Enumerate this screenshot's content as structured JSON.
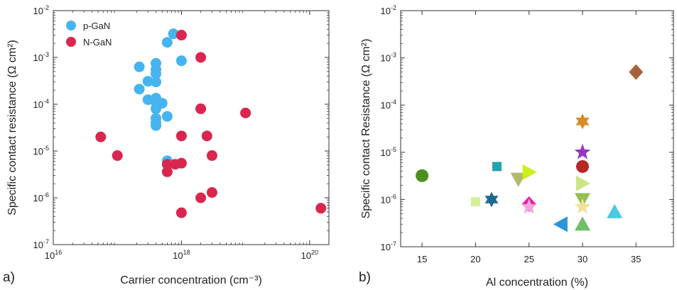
{
  "chart_data": [
    {
      "type": "scatter",
      "panel_label": "a)",
      "xlabel": "Carrier concentration (cm⁻³)",
      "ylabel": "Specific contact resistance (Ω cm²)",
      "xscale": "log",
      "yscale": "log",
      "xlim": [
        1e+16,
        2e+20
      ],
      "ylim": [
        1e-07,
        0.01
      ],
      "grid": false,
      "legend_position": "top-left",
      "xticks": [
        {
          "value": 1e+16,
          "base": "10",
          "exp": "16"
        },
        {
          "value": 1e+18,
          "base": "10",
          "exp": "18"
        },
        {
          "value": 1e+20,
          "base": "10",
          "exp": "20"
        }
      ],
      "yticks": [
        {
          "value": 1e-07,
          "base": "10",
          "exp": "-7"
        },
        {
          "value": 1e-06,
          "base": "10",
          "exp": "-6"
        },
        {
          "value": 1e-05,
          "base": "10",
          "exp": "-5"
        },
        {
          "value": 0.0001,
          "base": "10",
          "exp": "-4"
        },
        {
          "value": 0.001,
          "base": "10",
          "exp": "-3"
        },
        {
          "value": 0.01,
          "base": "10",
          "exp": "-2"
        }
      ],
      "series": [
        {
          "name": "p-GaN",
          "color": "#46b4ef",
          "points": [
            [
              2.2e+17,
              0.00063
            ],
            [
              2.2e+17,
              0.00021
            ],
            [
              3e+17,
              0.00031
            ],
            [
              3e+17,
              0.000125
            ],
            [
              4e+17,
              0.00075
            ],
            [
              4e+17,
              0.00055
            ],
            [
              4e+17,
              0.00045
            ],
            [
              4e+17,
              0.0003
            ],
            [
              4e+17,
              0.000135
            ],
            [
              4e+17,
              0.00011
            ],
            [
              4e+17,
              8e-05
            ],
            [
              4e+17,
              5e-05
            ],
            [
              4e+17,
              4e-05
            ],
            [
              4e+17,
              3.5e-05
            ],
            [
              5e+17,
              0.000105
            ],
            [
              6e+17,
              5.5e-05
            ],
            [
              6e+17,
              0.0021
            ],
            [
              6e+17,
              6.2e-06
            ],
            [
              7.5e+17,
              0.0032
            ],
            [
              1e+18,
              0.00085
            ]
          ]
        },
        {
          "name": "N-GaN",
          "color": "#d9264f",
          "points": [
            [
              1e+18,
              0.003
            ],
            [
              2e+18,
              0.001
            ],
            [
              2e+18,
              8e-05
            ],
            [
              1e+19,
              6.5e-05
            ],
            [
              5.5e+16,
              2e-05
            ],
            [
              1e+17,
              8e-06
            ],
            [
              1e+18,
              2.1e-05
            ],
            [
              2.5e+18,
              2.1e-05
            ],
            [
              3e+18,
              8e-06
            ],
            [
              6e+17,
              5.2e-06
            ],
            [
              6e+17,
              3.6e-06
            ],
            [
              8e+17,
              5.2e-06
            ],
            [
              1e+18,
              5.5e-06
            ],
            [
              2e+18,
              1e-06
            ],
            [
              3e+18,
              1.3e-06
            ],
            [
              1e+18,
              4.8e-07
            ],
            [
              1.5e+20,
              6e-07
            ]
          ]
        }
      ]
    },
    {
      "type": "scatter",
      "panel_label": "b)",
      "xlabel": "Al concentration (%)",
      "ylabel": "Specific contact Resistance (Ω cm²)",
      "xscale": "linear",
      "yscale": "log",
      "xlim": [
        13,
        38.5
      ],
      "ylim": [
        1e-07,
        0.01
      ],
      "grid": false,
      "xticks": [
        {
          "value": 15,
          "label": "15"
        },
        {
          "value": 20,
          "label": "20"
        },
        {
          "value": 25,
          "label": "25"
        },
        {
          "value": 30,
          "label": "30"
        },
        {
          "value": 35,
          "label": "35"
        }
      ],
      "yticks": [
        {
          "value": 1e-07,
          "base": "10",
          "exp": "-7"
        },
        {
          "value": 1e-06,
          "base": "10",
          "exp": "-6"
        },
        {
          "value": 1e-05,
          "base": "10",
          "exp": "-5"
        },
        {
          "value": 0.0001,
          "base": "10",
          "exp": "-4"
        },
        {
          "value": 0.001,
          "base": "10",
          "exp": "-3"
        },
        {
          "value": 0.01,
          "base": "10",
          "exp": "-2"
        }
      ],
      "points": [
        {
          "x": 15,
          "y": 3.2e-06,
          "shape": "circle",
          "color": "#4e8e1e"
        },
        {
          "x": 20,
          "y": 9e-07,
          "shape": "square",
          "color": "#d6ee9a"
        },
        {
          "x": 21.5,
          "y": 1e-06,
          "shape": "hexagram",
          "color": "#1c6b8c"
        },
        {
          "x": 22,
          "y": 5e-06,
          "shape": "square",
          "color": "#23a3ad"
        },
        {
          "x": 24,
          "y": 2.7e-06,
          "shape": "triangle-down",
          "color": "#b4b86a"
        },
        {
          "x": 25,
          "y": 3.8e-06,
          "shape": "triangle-right",
          "color": "#c9ef1c"
        },
        {
          "x": 25,
          "y": 8e-07,
          "shape": "diamond",
          "color": "#e01fa5"
        },
        {
          "x": 25,
          "y": 7e-07,
          "shape": "star",
          "color": "#f2a7d6"
        },
        {
          "x": 28,
          "y": 3e-07,
          "shape": "triangle-left",
          "color": "#2a95d9"
        },
        {
          "x": 30,
          "y": 4.5e-05,
          "shape": "hexagram",
          "color": "#d98c24"
        },
        {
          "x": 30,
          "y": 1e-05,
          "shape": "star",
          "color": "#9b33c9"
        },
        {
          "x": 30,
          "y": 5e-06,
          "shape": "circle",
          "color": "#b82626"
        },
        {
          "x": 30,
          "y": 2.2e-06,
          "shape": "triangle-right",
          "color": "#cbe588"
        },
        {
          "x": 30,
          "y": 1e-06,
          "shape": "triangle-down",
          "color": "#97bd55"
        },
        {
          "x": 30,
          "y": 7e-07,
          "shape": "star",
          "color": "#eee19a"
        },
        {
          "x": 30,
          "y": 3e-07,
          "shape": "triangle-up",
          "color": "#6dbf68"
        },
        {
          "x": 33,
          "y": 5.5e-07,
          "shape": "triangle-up",
          "color": "#4cc8e0"
        },
        {
          "x": 35,
          "y": 0.0005,
          "shape": "diamond",
          "color": "#a8623a"
        }
      ]
    }
  ]
}
